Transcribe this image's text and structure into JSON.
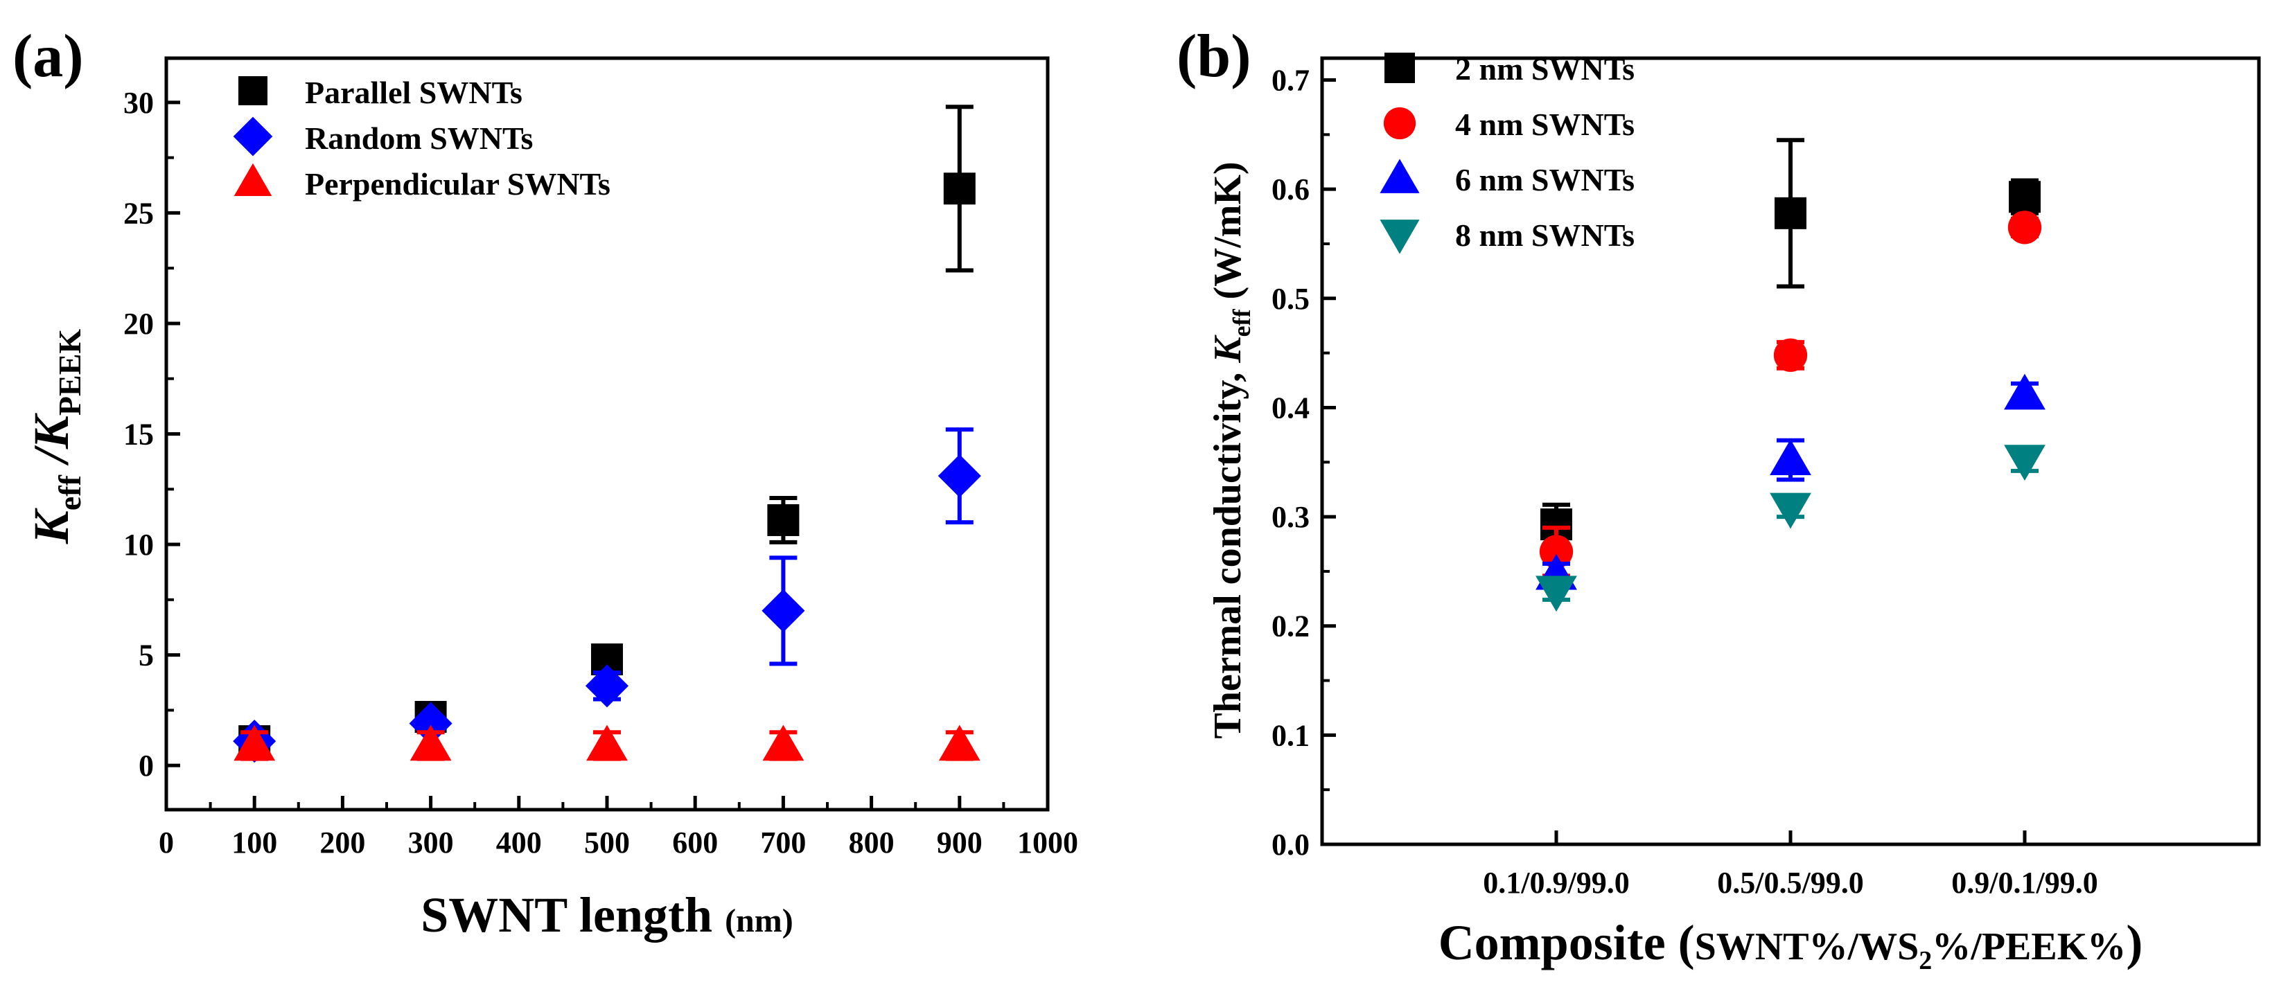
{
  "panels": [
    {
      "panel_label": "(a)",
      "chart_data": {
        "type": "scatter",
        "title": "",
        "xlabel": "SWNT length",
        "xlabel_unit": "(nm)",
        "ylabel_parts": [
          "K",
          "eff",
          " /K",
          "PEEK"
        ],
        "xlim": [
          0,
          1000
        ],
        "ylim": [
          -2,
          32
        ],
        "xticks": [
          0,
          100,
          200,
          300,
          400,
          500,
          600,
          700,
          800,
          900,
          1000
        ],
        "yticks": [
          0,
          5,
          10,
          15,
          20,
          25,
          30
        ],
        "legend_position": "top-left",
        "series": [
          {
            "name": "Parallel SWNTs",
            "marker": "square",
            "color": "#000000",
            "x": [
              100,
              300,
              500,
              700,
              900
            ],
            "y": [
              1.1,
              2.2,
              4.8,
              11.1,
              26.1
            ],
            "err": [
              0.1,
              0.2,
              0.3,
              1.0,
              3.7
            ]
          },
          {
            "name": "Random SWNTs",
            "marker": "diamond",
            "color": "#0000ff",
            "x": [
              100,
              300,
              500,
              700,
              900
            ],
            "y": [
              1.1,
              1.9,
              3.6,
              7.0,
              13.1
            ],
            "err": [
              0.1,
              0.2,
              0.6,
              2.4,
              2.1
            ]
          },
          {
            "name": "Perpendicular SWNTs",
            "marker": "triangle-up",
            "color": "#ff0000",
            "x": [
              100,
              300,
              500,
              700,
              900
            ],
            "y": [
              0.9,
              0.9,
              0.9,
              0.9,
              0.9
            ],
            "err": [
              0.6,
              0.6,
              0.6,
              0.6,
              0.6
            ]
          }
        ]
      }
    },
    {
      "panel_label": "(b)",
      "chart_data": {
        "type": "scatter",
        "title": "",
        "xlabel_parts": [
          "Composite (",
          "SWNT%/WS",
          "2",
          "%/PEEK%",
          ")"
        ],
        "ylabel_parts": [
          "Thermal conductivity, ",
          "K",
          "eff",
          " (W/mK)"
        ],
        "categories": [
          "0.1/0.9/99.0",
          "0.5/0.5/99.0",
          "0.9/0.1/99.0"
        ],
        "xlim": [
          0,
          4
        ],
        "ylim": [
          0.0,
          0.72
        ],
        "yticks": [
          "0.0",
          "0.1",
          "0.2",
          "0.3",
          "0.4",
          "0.5",
          "0.6",
          "0.7"
        ],
        "legend_position": "top-left",
        "series": [
          {
            "name": "2 nm SWNTs",
            "marker": "square",
            "color": "#000000",
            "y": [
              0.293,
              0.578,
              0.593
            ],
            "err": [
              0.018,
              0.067,
              0.015
            ]
          },
          {
            "name": "4 nm SWNTs",
            "marker": "circle",
            "color": "#ff0000",
            "y": [
              0.268,
              0.448,
              0.565
            ],
            "err": [
              0.022,
              0.012,
              0.008
            ]
          },
          {
            "name": "6 nm SWNTs",
            "marker": "triangle-up",
            "color": "#0000ff",
            "y": [
              0.247,
              0.352,
              0.412
            ],
            "err": [
              0.01,
              0.018,
              0.01
            ]
          },
          {
            "name": "8 nm SWNTs",
            "marker": "triangle-down",
            "color": "#008080",
            "y": [
              0.232,
              0.308,
              0.352
            ],
            "err": [
              0.008,
              0.008,
              0.01
            ]
          }
        ]
      }
    }
  ]
}
